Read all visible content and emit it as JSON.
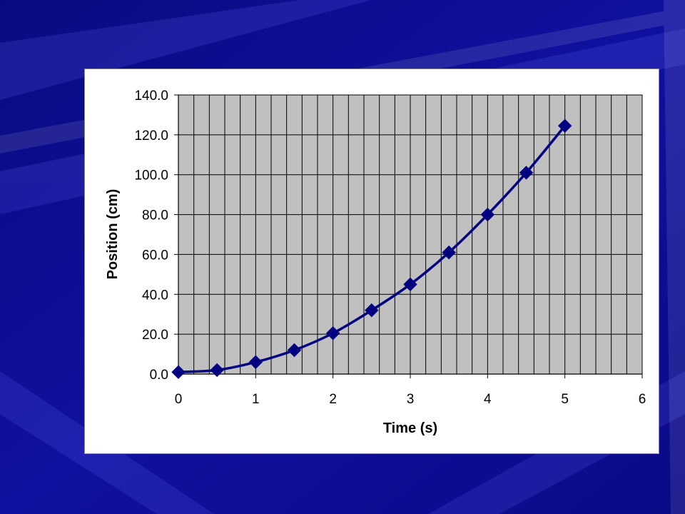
{
  "colors": {
    "background": "#0b0b8c",
    "plot_area": "#c0c0c0",
    "gridline": "#000000",
    "series": "#000080",
    "panel": "#ffffff"
  },
  "chart_data": {
    "type": "line",
    "title": "",
    "xlabel": "Time (s)",
    "ylabel": "Position (cm)",
    "xlim": [
      0,
      6
    ],
    "ylim": [
      0,
      140
    ],
    "x_ticks": [
      "0",
      "1",
      "2",
      "3",
      "4",
      "5",
      "6"
    ],
    "y_ticks": [
      "0.0",
      "20.0",
      "40.0",
      "60.0",
      "80.0",
      "100.0",
      "120.0",
      "140.0"
    ],
    "x_minor_step": 0.2,
    "grid": true,
    "legend": "none",
    "marker": "diamond",
    "series": [
      {
        "x": [
          0,
          0.5,
          1,
          1.5,
          2,
          2.5,
          3,
          3.5,
          4,
          4.5,
          5
        ],
        "y": [
          1.0,
          2.0,
          6.0,
          12.0,
          20.5,
          32.0,
          45.0,
          61.0,
          80.0,
          101.0,
          124.5
        ]
      }
    ]
  }
}
